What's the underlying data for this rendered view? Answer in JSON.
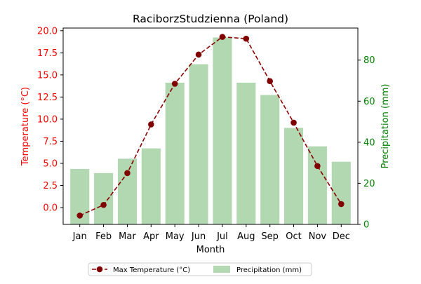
{
  "chart_data": {
    "type": "bar",
    "title": "RaciborzStudzienna (Poland)",
    "xlabel": "Month",
    "categories": [
      "Jan",
      "Feb",
      "Mar",
      "Apr",
      "May",
      "Jun",
      "Jul",
      "Aug",
      "Sep",
      "Oct",
      "Nov",
      "Dec"
    ],
    "left_axis": {
      "label": "Temperature (°C)",
      "color": "#ff0000",
      "ylim": [
        -1.9,
        20.3
      ],
      "ticks": [
        "0.0",
        "2.5",
        "5.0",
        "7.5",
        "10.0",
        "12.5",
        "15.0",
        "17.5",
        "20.0"
      ]
    },
    "right_axis": {
      "label": "Precipitation (mm)",
      "color": "#008000",
      "ylim": [
        0,
        95.6
      ],
      "ticks": [
        "0",
        "20",
        "40",
        "60",
        "80"
      ]
    },
    "series": [
      {
        "name": "Max Temperature (°C)",
        "type": "line",
        "axis": "left",
        "color": "#8b0000",
        "values": [
          -0.9,
          0.3,
          3.9,
          9.4,
          14.0,
          17.3,
          19.3,
          19.1,
          14.3,
          9.6,
          4.7,
          0.4
        ]
      },
      {
        "name": "Precipitation (mm)",
        "type": "bar",
        "axis": "right",
        "color": "#b2d8b2",
        "values": [
          27,
          25,
          32,
          37,
          69,
          78,
          91,
          69,
          63,
          47,
          38,
          30.5
        ]
      }
    ],
    "legend": {
      "placement": "bottom-center",
      "labels": [
        "Max Temperature (°C)",
        "Precipitation (mm)"
      ]
    },
    "grid": false
  }
}
